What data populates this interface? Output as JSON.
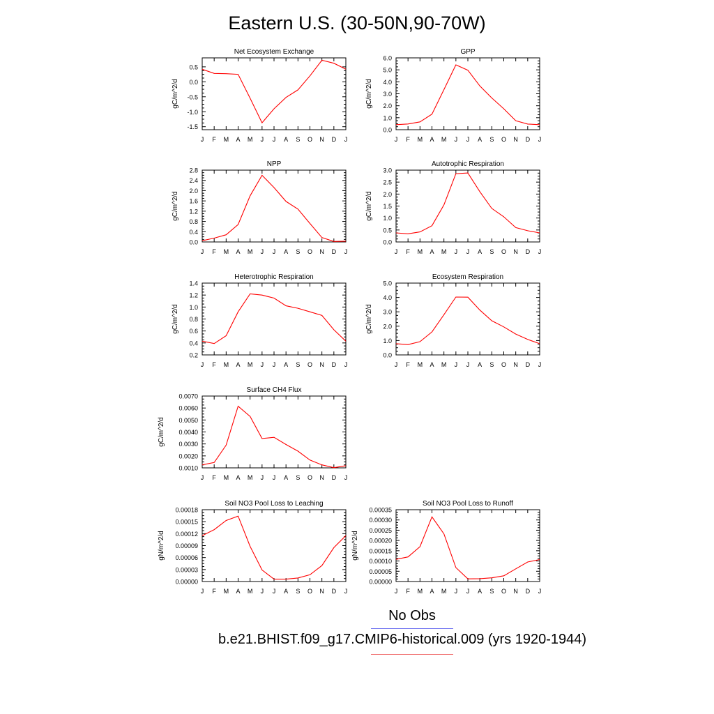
{
  "title": "Eastern U.S. (30-50N,90-70W)",
  "legend": {
    "obs_label": "No Obs",
    "obs_color": "#6f73f0",
    "run_label": "b.e21.BHIST.f09_g17.CMIP6-historical.009 (yrs 1920-1944)",
    "run_color": "#f06a6a"
  },
  "series_color": "#ff0000",
  "chart_data": [
    {
      "type": "line",
      "title": "Net Ecosystem Exchange",
      "ylabel": "gC/m^2/d",
      "x": [
        "J",
        "F",
        "M",
        "A",
        "M",
        "J",
        "J",
        "A",
        "S",
        "O",
        "N",
        "D",
        "J"
      ],
      "values": [
        0.42,
        0.28,
        0.27,
        0.25,
        -0.55,
        -1.37,
        -0.9,
        -0.52,
        -0.27,
        0.2,
        0.72,
        0.62,
        0.42
      ],
      "ylim": [
        -1.6,
        0.8
      ],
      "yticks": [
        "-1.5",
        "-1.0",
        "-0.5",
        "0.0",
        "0.5"
      ],
      "ytick_values": [
        -1.5,
        -1.0,
        -0.5,
        0.0,
        0.5
      ]
    },
    {
      "type": "line",
      "title": "GPP",
      "ylabel": "gC/m^2/d",
      "x": [
        "J",
        "F",
        "M",
        "A",
        "M",
        "J",
        "J",
        "A",
        "S",
        "O",
        "N",
        "D",
        "J"
      ],
      "values": [
        0.42,
        0.48,
        0.65,
        1.3,
        3.35,
        5.42,
        4.97,
        3.65,
        2.65,
        1.75,
        0.75,
        0.47,
        0.42
      ],
      "ylim": [
        0,
        6
      ],
      "yticks": [
        "0.0",
        "1.0",
        "2.0",
        "3.0",
        "4.0",
        "5.0",
        "6.0"
      ],
      "ytick_values": [
        0,
        1,
        2,
        3,
        4,
        5,
        6
      ]
    },
    {
      "type": "line",
      "title": "NPP",
      "ylabel": "gC/m^2/d",
      "x": [
        "J",
        "F",
        "M",
        "A",
        "M",
        "J",
        "J",
        "A",
        "S",
        "O",
        "N",
        "D",
        "J"
      ],
      "values": [
        0.05,
        0.15,
        0.28,
        0.68,
        1.8,
        2.6,
        2.12,
        1.58,
        1.28,
        0.72,
        0.17,
        0.02,
        0.03
      ],
      "ylim": [
        0,
        2.8
      ],
      "yticks": [
        "0.0",
        "0.4",
        "0.8",
        "1.2",
        "1.6",
        "2.0",
        "2.4",
        "2.8"
      ],
      "ytick_values": [
        0,
        0.4,
        0.8,
        1.2,
        1.6,
        2.0,
        2.4,
        2.8
      ]
    },
    {
      "type": "line",
      "title": "Autotrophic Respiration",
      "ylabel": "gC/m^2/d",
      "x": [
        "J",
        "F",
        "M",
        "A",
        "M",
        "J",
        "J",
        "A",
        "S",
        "O",
        "N",
        "D",
        "J"
      ],
      "values": [
        0.38,
        0.34,
        0.42,
        0.68,
        1.55,
        2.85,
        2.88,
        2.1,
        1.4,
        1.05,
        0.6,
        0.47,
        0.38
      ],
      "ylim": [
        0,
        3
      ],
      "yticks": [
        "0.0",
        "0.5",
        "1.0",
        "1.5",
        "2.0",
        "2.5",
        "3.0"
      ],
      "ytick_values": [
        0,
        0.5,
        1.0,
        1.5,
        2.0,
        2.5,
        3.0
      ]
    },
    {
      "type": "line",
      "title": "Heterotrophic Respiration",
      "ylabel": "gC/m^2/d",
      "x": [
        "J",
        "F",
        "M",
        "A",
        "M",
        "J",
        "J",
        "A",
        "S",
        "O",
        "N",
        "D",
        "J"
      ],
      "values": [
        0.43,
        0.39,
        0.52,
        0.92,
        1.22,
        1.2,
        1.15,
        1.02,
        0.98,
        0.92,
        0.86,
        0.62,
        0.43
      ],
      "ylim": [
        0.2,
        1.4
      ],
      "yticks": [
        "0.2",
        "0.4",
        "0.6",
        "0.8",
        "1.0",
        "1.2",
        "1.4"
      ],
      "ytick_values": [
        0.2,
        0.4,
        0.6,
        0.8,
        1.0,
        1.2,
        1.4
      ]
    },
    {
      "type": "line",
      "title": "Ecosystem Respiration",
      "ylabel": "gC/m^2/d",
      "x": [
        "J",
        "F",
        "M",
        "A",
        "M",
        "J",
        "J",
        "A",
        "S",
        "O",
        "N",
        "D",
        "J"
      ],
      "values": [
        0.78,
        0.72,
        0.92,
        1.6,
        2.8,
        4.03,
        4.02,
        3.12,
        2.38,
        1.95,
        1.45,
        1.08,
        0.78
      ],
      "ylim": [
        0,
        5
      ],
      "yticks": [
        "0.0",
        "1.0",
        "2.0",
        "3.0",
        "4.0",
        "5.0"
      ],
      "ytick_values": [
        0,
        1,
        2,
        3,
        4,
        5
      ]
    },
    {
      "type": "line",
      "title": "Surface CH4 Flux",
      "ylabel": "gC/m^2/d",
      "x": [
        "J",
        "F",
        "M",
        "A",
        "M",
        "J",
        "J",
        "A",
        "S",
        "O",
        "N",
        "D",
        "J"
      ],
      "values": [
        0.00125,
        0.00145,
        0.0029,
        0.00615,
        0.0053,
        0.00345,
        0.00355,
        0.00295,
        0.0024,
        0.00165,
        0.00125,
        0.00102,
        0.00118
      ],
      "ylim": [
        0.001,
        0.007
      ],
      "yticks": [
        "0.0010",
        "0.0020",
        "0.0030",
        "0.0040",
        "0.0050",
        "0.0060",
        "0.0070"
      ],
      "ytick_values": [
        0.001,
        0.002,
        0.003,
        0.004,
        0.005,
        0.006,
        0.007
      ]
    },
    {
      "type": "line",
      "title": "Soil NO3 Pool Loss to Leaching",
      "ylabel": "gN/m^2/d",
      "x": [
        "J",
        "F",
        "M",
        "A",
        "M",
        "J",
        "J",
        "A",
        "S",
        "O",
        "N",
        "D",
        "J"
      ],
      "values": [
        0.000115,
        0.00013,
        0.000153,
        0.000164,
        8.8e-05,
        2.9e-05,
        6e-06,
        6e-06,
        9e-06,
        1.7e-05,
        4e-05,
        8.5e-05,
        0.000115
      ],
      "ylim": [
        0,
        0.00018
      ],
      "yticks": [
        "0.00000",
        "0.00003",
        "0.00006",
        "0.00009",
        "0.00012",
        "0.00015",
        "0.00018"
      ],
      "ytick_values": [
        0,
        3e-05,
        6e-05,
        9e-05,
        0.00012,
        0.00015,
        0.00018
      ]
    },
    {
      "type": "line",
      "title": "Soil NO3 Pool Loss to Runoff",
      "ylabel": "gN/m^2/d",
      "x": [
        "J",
        "F",
        "M",
        "A",
        "M",
        "J",
        "J",
        "A",
        "S",
        "O",
        "N",
        "D",
        "J"
      ],
      "values": [
        0.000108,
        0.00012,
        0.00017,
        0.000315,
        0.000232,
        6.8e-05,
        1.3e-05,
        1.4e-05,
        1.8e-05,
        2.8e-05,
        6.2e-05,
        9.5e-05,
        0.000107
      ],
      "ylim": [
        0,
        0.00035
      ],
      "yticks": [
        "0.00000",
        "0.00005",
        "0.00010",
        "0.00015",
        "0.00020",
        "0.00025",
        "0.00030",
        "0.00035"
      ],
      "ytick_values": [
        0,
        5e-05,
        0.0001,
        0.00015,
        0.0002,
        0.00025,
        0.0003,
        0.00035
      ]
    }
  ]
}
